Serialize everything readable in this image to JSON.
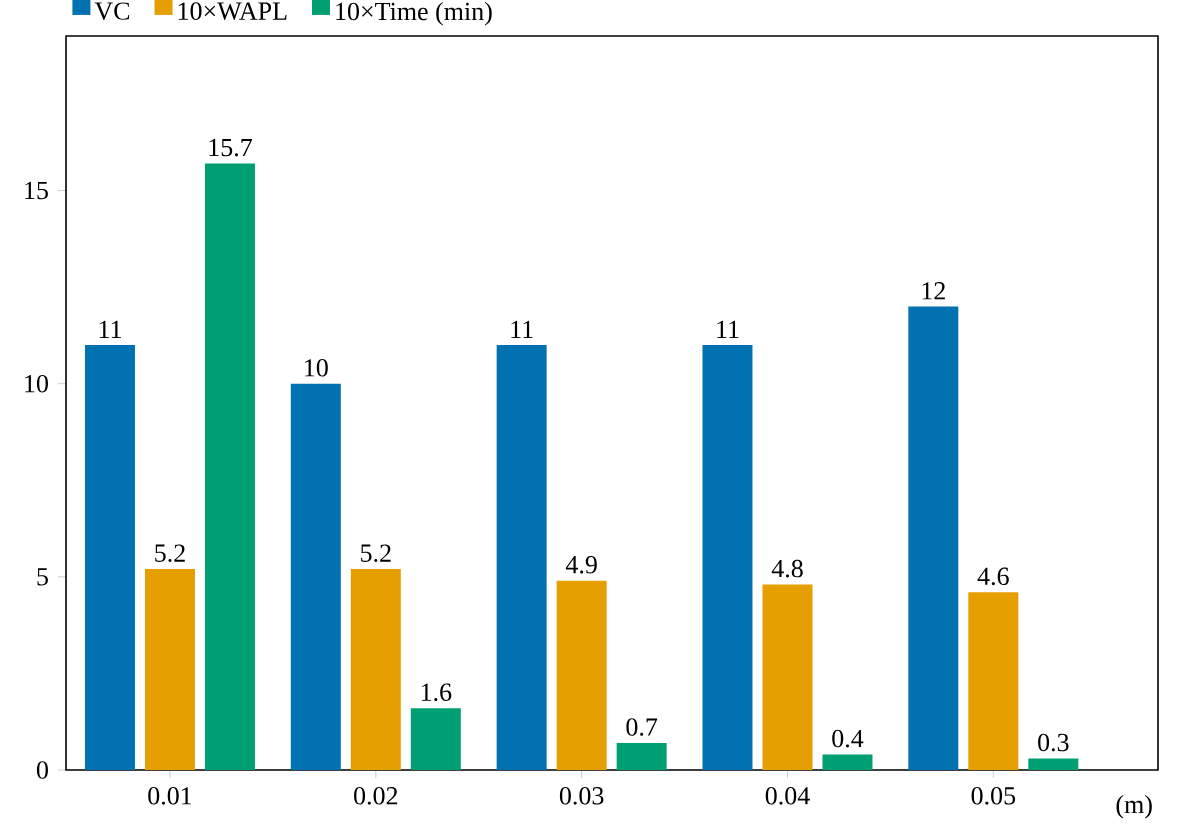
{
  "chart_data": {
    "type": "bar",
    "categories": [
      "0.01",
      "0.02",
      "0.03",
      "0.04",
      "0.05"
    ],
    "xlabel": "(m)",
    "series": [
      {
        "name": "VC",
        "color": "#0072b2",
        "values": [
          11,
          10,
          11,
          11,
          12
        ]
      },
      {
        "name": "10×WAPL",
        "color": "#e69f00",
        "values": [
          5.2,
          5.2,
          4.9,
          4.8,
          4.6
        ]
      },
      {
        "name": "10×Time (min)",
        "color": "#009e73",
        "values": [
          15.7,
          1.6,
          0.7,
          0.4,
          0.3
        ]
      }
    ],
    "ylim": [
      0,
      19
    ],
    "yticks": [
      0,
      5,
      10,
      15
    ],
    "data_labels": true,
    "legend": "top left",
    "grid": false
  }
}
